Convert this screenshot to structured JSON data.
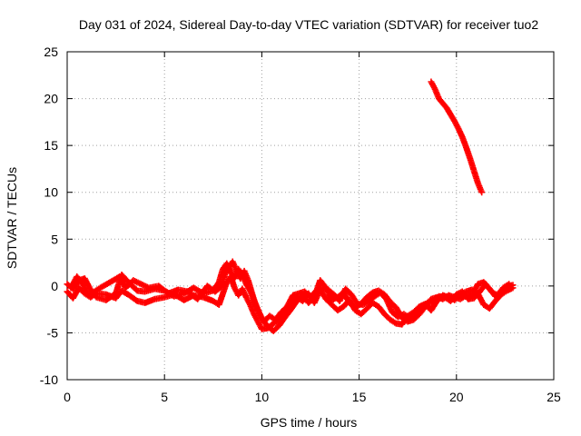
{
  "chart_data": {
    "type": "scatter",
    "title": "Day 031 of 2024, Sidereal Day-to-day VTEC variation (SDTVAR) for receiver tuo2",
    "xlabel": "GPS time / hours",
    "ylabel": "SDTVAR / TECUs",
    "xlim": [
      0,
      25
    ],
    "ylim": [
      -10,
      25
    ],
    "xticks": [
      "0",
      "5",
      "10",
      "15",
      "20",
      "25"
    ],
    "yticks": [
      "-10",
      "-5",
      "0",
      "5",
      "10",
      "15",
      "20",
      "25"
    ],
    "grid": true,
    "marker": "+",
    "color": "#ff0000",
    "series": [
      {
        "name": "lower_trace_a",
        "x": [
          0.0,
          0.3,
          0.6,
          0.9,
          1.2,
          1.5,
          2.0,
          2.5,
          2.8,
          3.2,
          3.6,
          4.0,
          4.5,
          5.0,
          5.5,
          6.0,
          6.5,
          7.0,
          7.5,
          7.8,
          8.0,
          8.2,
          8.4,
          8.6,
          8.8,
          9.0,
          9.2,
          9.4,
          9.6,
          9.8,
          10.0,
          10.3,
          10.6,
          10.9,
          11.2,
          11.5,
          11.8,
          12.1,
          12.4,
          12.7,
          13.0,
          13.3,
          13.6,
          13.9,
          14.2,
          14.5,
          14.8,
          15.1,
          15.4,
          15.7,
          16.0,
          16.3,
          16.6,
          16.9,
          17.2,
          17.5,
          17.8,
          18.1,
          18.4,
          18.7,
          19.0,
          19.3,
          19.6,
          19.9,
          20.2,
          20.5,
          20.8,
          21.1,
          21.4,
          21.7,
          22.0,
          22.3,
          22.6,
          22.9
        ],
        "y": [
          0.2,
          -0.3,
          0.6,
          0.8,
          -0.4,
          -1.2,
          -1.5,
          -0.8,
          1.2,
          0.3,
          -0.5,
          -0.6,
          -0.3,
          -0.5,
          -1.1,
          -0.8,
          -0.2,
          -0.8,
          -0.5,
          0.4,
          1.8,
          2.4,
          1.5,
          0.8,
          1.8,
          1.2,
          0.2,
          -0.5,
          -1.5,
          -2.5,
          -3.5,
          -4.3,
          -4.8,
          -4.2,
          -3.3,
          -2.5,
          -1.6,
          -1.0,
          -1.8,
          -1.2,
          0.6,
          -0.2,
          -1.5,
          -1.2,
          -0.7,
          -1.8,
          -2.3,
          -1.9,
          -1.2,
          -0.7,
          -0.5,
          -0.9,
          -1.7,
          -2.3,
          -3.4,
          -3.8,
          -3.6,
          -3.0,
          -2.2,
          -1.4,
          -1.2,
          -1.4,
          -1.0,
          -1.2,
          -1.4,
          -1.0,
          -1.0,
          0.2,
          0.4,
          -0.3,
          -1.1,
          -0.6,
          0.0,
          0.1
        ]
      },
      {
        "name": "lower_trace_b",
        "x": [
          0.0,
          0.3,
          0.6,
          0.9,
          1.2,
          1.5,
          2.0,
          2.5,
          2.8,
          3.2,
          3.6,
          4.0,
          4.5,
          5.0,
          5.5,
          6.0,
          6.5,
          7.0,
          7.5,
          7.8,
          8.0,
          8.2,
          8.4,
          8.6,
          8.8,
          9.0,
          9.2,
          9.4,
          9.6,
          9.8,
          10.0,
          10.3,
          10.6,
          10.9,
          11.2,
          11.5,
          11.8,
          12.1,
          12.4,
          12.7,
          13.0,
          13.3,
          13.6,
          13.9,
          14.2,
          14.5,
          14.8,
          15.1,
          15.4,
          15.7,
          16.0,
          16.3,
          16.6,
          16.9,
          17.2,
          17.5,
          17.8,
          18.1,
          18.4,
          18.7,
          19.0,
          19.3,
          19.6,
          19.9,
          20.2,
          20.5,
          20.8,
          21.1,
          21.4,
          21.7,
          22.0,
          22.3,
          22.6,
          22.9
        ],
        "y": [
          -0.6,
          -1.3,
          -0.2,
          -0.8,
          -1.2,
          -0.8,
          -0.9,
          -1.3,
          -0.5,
          -1.0,
          -1.6,
          -1.8,
          -1.4,
          -1.2,
          -0.9,
          -1.5,
          -1.0,
          -1.2,
          -1.6,
          -2.0,
          -0.8,
          0.4,
          1.0,
          -0.2,
          -1.0,
          -0.3,
          -1.2,
          -2.0,
          -3.0,
          -3.8,
          -4.6,
          -4.5,
          -4.0,
          -3.6,
          -2.8,
          -1.8,
          -1.2,
          -1.6,
          -0.8,
          -1.8,
          -0.4,
          -1.4,
          -2.0,
          -2.6,
          -2.2,
          -1.5,
          -2.6,
          -3.0,
          -2.4,
          -1.8,
          -2.2,
          -3.0,
          -3.6,
          -4.0,
          -4.1,
          -3.2,
          -2.8,
          -2.2,
          -1.9,
          -2.6,
          -1.6,
          -1.0,
          -1.2,
          -1.5,
          -0.9,
          -0.6,
          -0.4,
          -0.8,
          -2.0,
          -2.4,
          -1.6,
          -0.9,
          -0.5,
          -0.2
        ]
      },
      {
        "name": "lower_trace_c",
        "x": [
          0.2,
          0.5,
          0.8,
          1.1,
          1.4,
          1.7,
          2.2,
          2.7,
          3.0,
          3.4,
          3.8,
          4.2,
          4.7,
          5.2,
          5.7,
          6.2,
          6.7,
          7.2,
          7.6,
          7.9,
          8.1,
          8.3,
          8.5,
          8.7,
          8.9,
          9.1,
          9.3,
          9.5,
          9.7,
          9.9,
          10.1,
          10.4,
          10.7,
          11.0,
          11.3,
          11.6,
          11.9,
          12.2,
          12.5,
          12.8,
          13.1,
          13.4,
          13.7,
          14.0,
          14.3,
          14.6,
          14.9,
          15.2,
          15.5,
          15.8,
          16.1,
          16.4,
          16.7,
          17.0,
          17.3,
          17.6,
          17.9,
          18.2,
          18.5,
          18.8,
          19.1,
          19.4,
          19.7,
          20.0,
          20.3,
          20.6,
          20.9,
          21.2,
          21.5,
          21.8,
          22.1,
          22.4,
          22.7
        ],
        "y": [
          -0.2,
          1.0,
          0.2,
          -1.0,
          -0.6,
          -0.2,
          0.4,
          1.0,
          -0.2,
          0.6,
          0.2,
          -0.2,
          0.0,
          -0.8,
          -0.4,
          -0.6,
          -1.4,
          0.0,
          -0.6,
          -0.1,
          1.2,
          2.0,
          2.6,
          1.6,
          0.8,
          1.6,
          0.6,
          -0.8,
          -2.2,
          -3.0,
          -3.8,
          -3.2,
          -3.6,
          -2.8,
          -2.2,
          -1.0,
          -0.8,
          -0.6,
          -1.2,
          -0.5,
          -0.2,
          -0.4,
          -0.9,
          -1.6,
          -0.3,
          -0.9,
          -1.9,
          -2.0,
          -1.6,
          -1.1,
          -0.7,
          -1.4,
          -2.8,
          -3.3,
          -3.0,
          -3.4,
          -3.2,
          -2.5,
          -1.8,
          -1.8,
          -1.1,
          -1.2,
          -1.6,
          -0.9,
          -0.6,
          -1.4,
          -1.3,
          -0.6,
          0.2,
          -0.6,
          -1.0,
          -0.2,
          0.2
        ]
      },
      {
        "name": "upper_trace",
        "x": [
          18.7,
          18.9,
          19.1,
          19.3,
          19.5,
          19.7,
          19.9,
          20.1,
          20.3,
          20.5,
          20.7,
          20.9,
          21.1,
          21.3
        ],
        "y": [
          21.8,
          21.0,
          20.0,
          19.5,
          19.0,
          18.3,
          17.6,
          16.8,
          15.9,
          14.8,
          13.6,
          12.3,
          11.0,
          10.0
        ]
      }
    ]
  }
}
